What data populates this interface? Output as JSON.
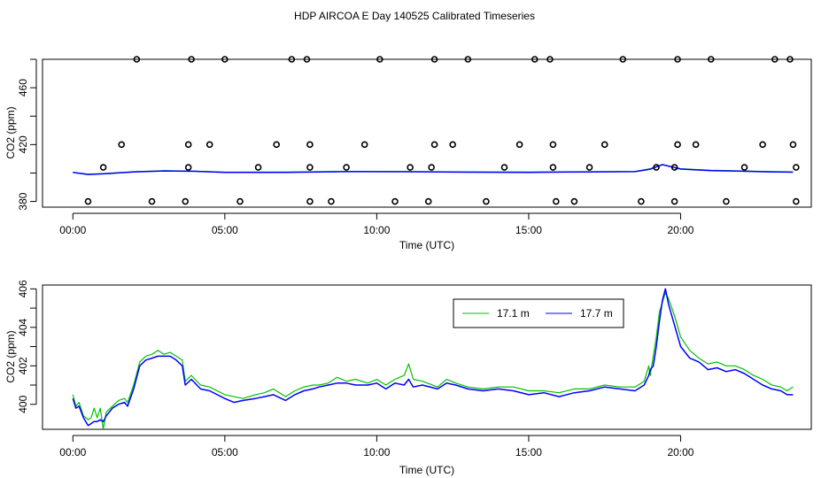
{
  "title": "HDP AIRCOA E  Day 140525  Calibrated Timeseries",
  "chart_data": [
    {
      "type": "scatter",
      "xlabel": "Time (UTC)",
      "ylabel": "CO2 (ppm)",
      "xlim": [
        -1.0,
        24.3
      ],
      "ylim": [
        376,
        480
      ],
      "xticks": [
        0,
        5,
        10,
        15,
        20
      ],
      "xtick_labels": [
        "00:00",
        "05:00",
        "10:00",
        "15:00",
        "20:00"
      ],
      "yticks": [
        380,
        400,
        420,
        440,
        460,
        480
      ],
      "ytick_labels": [
        "380",
        "",
        "420",
        "",
        "460",
        ""
      ],
      "points": {
        "x": [
          2.1,
          3.9,
          5.0,
          7.2,
          7.7,
          10.1,
          11.9,
          13.0,
          15.2,
          15.7,
          18.1,
          19.9,
          21.0,
          23.1,
          23.6,
          1.6,
          3.8,
          4.5,
          6.7,
          7.8,
          9.6,
          11.9,
          12.5,
          14.7,
          15.8,
          17.5,
          19.9,
          20.5,
          22.7,
          23.7,
          1.0,
          3.8,
          6.1,
          7.8,
          9.0,
          11.1,
          11.8,
          14.2,
          15.8,
          17.0,
          19.2,
          19.8,
          22.1,
          23.8,
          0.5,
          2.6,
          3.7,
          5.5,
          7.8,
          8.5,
          10.6,
          11.7,
          13.6,
          15.9,
          16.5,
          18.7,
          19.8,
          21.5,
          23.8
        ],
        "y": [
          480,
          480,
          480,
          480,
          480,
          480,
          480,
          480,
          480,
          480,
          480,
          480,
          480,
          480,
          480,
          420,
          420,
          420,
          420,
          420,
          420,
          420,
          420,
          420,
          420,
          420,
          420,
          420,
          420,
          420,
          404,
          404,
          404,
          404,
          404,
          404,
          404,
          404,
          404,
          404,
          404,
          404,
          404,
          404,
          380,
          380,
          380,
          380,
          380,
          380,
          380,
          380,
          380,
          380,
          380,
          380,
          380,
          380,
          380
        ]
      },
      "series": [
        {
          "color": "#00c000",
          "x": [
            0,
            0.5,
            1,
            2,
            3,
            4,
            5,
            7,
            9,
            11,
            13,
            15,
            17,
            18.5,
            19,
            19.4,
            20,
            21,
            22,
            23,
            23.7
          ],
          "y": [
            400.5,
            399.2,
            399.6,
            400.9,
            401.6,
            401.3,
            400.6,
            400.7,
            401.1,
            401.0,
            400.8,
            400.7,
            400.9,
            401.1,
            403.0,
            405.8,
            403.0,
            401.9,
            401.5,
            401.0,
            400.8
          ]
        },
        {
          "color": "#0000ff",
          "x": [
            0,
            0.5,
            1,
            2,
            3,
            4,
            5,
            7,
            9,
            11,
            13,
            15,
            17,
            18.5,
            19,
            19.4,
            20,
            21,
            22,
            23,
            23.7
          ],
          "y": [
            400.4,
            399.0,
            399.4,
            400.7,
            401.5,
            401.2,
            400.4,
            400.5,
            401.0,
            400.9,
            400.6,
            400.5,
            400.8,
            401.0,
            402.7,
            405.9,
            402.8,
            401.7,
            401.3,
            400.8,
            400.6
          ]
        }
      ]
    },
    {
      "type": "line",
      "xlabel": "Time (UTC)",
      "ylabel": "CO2 (ppm)",
      "xlim": [
        -1.0,
        24.3
      ],
      "ylim": [
        398.7,
        406.2
      ],
      "xticks": [
        0,
        5,
        10,
        15,
        20
      ],
      "xtick_labels": [
        "00:00",
        "05:00",
        "10:00",
        "15:00",
        "20:00"
      ],
      "yticks": [
        400,
        401,
        402,
        403,
        404,
        405,
        406
      ],
      "ytick_labels": [
        "400",
        "",
        "402",
        "",
        "404",
        "",
        "406"
      ],
      "legend": {
        "placement": "top-right"
      },
      "series": [
        {
          "name": "17.1 m",
          "color": "#00c000",
          "x": [
            0.0,
            0.1,
            0.2,
            0.35,
            0.5,
            0.6,
            0.7,
            0.8,
            0.9,
            1.0,
            1.1,
            1.3,
            1.5,
            1.7,
            1.8,
            2.0,
            2.2,
            2.4,
            2.6,
            2.8,
            3.0,
            3.2,
            3.4,
            3.6,
            3.7,
            3.9,
            4.2,
            4.5,
            5.0,
            5.3,
            5.6,
            6.0,
            6.3,
            6.6,
            7.0,
            7.3,
            7.6,
            7.9,
            8.1,
            8.4,
            8.7,
            9.0,
            9.3,
            9.7,
            10.0,
            10.3,
            10.6,
            10.9,
            11.05,
            11.2,
            11.5,
            12.0,
            12.3,
            12.6,
            13.0,
            13.5,
            14.0,
            14.5,
            15.0,
            15.5,
            16.0,
            16.5,
            17.0,
            17.5,
            18.0,
            18.5,
            18.8,
            18.95,
            19.0,
            19.1,
            19.2,
            19.3,
            19.4,
            19.5,
            19.6,
            19.8,
            20.0,
            20.3,
            20.6,
            20.9,
            21.2,
            21.5,
            21.8,
            22.1,
            22.4,
            22.7,
            23.0,
            23.3,
            23.5,
            23.7
          ],
          "y": [
            400.5,
            399.9,
            400.1,
            399.4,
            399.2,
            399.3,
            399.8,
            399.3,
            399.8,
            398.7,
            399.6,
            399.9,
            400.2,
            400.3,
            400.1,
            401.0,
            402.2,
            402.5,
            402.6,
            402.8,
            402.6,
            402.7,
            402.5,
            402.3,
            401.2,
            401.5,
            401.0,
            400.9,
            400.5,
            400.4,
            400.3,
            400.5,
            400.6,
            400.8,
            400.4,
            400.7,
            400.9,
            401.0,
            401.0,
            401.1,
            401.4,
            401.2,
            401.3,
            401.1,
            401.3,
            401.0,
            401.3,
            401.5,
            402.1,
            401.3,
            401.2,
            400.9,
            401.3,
            401.1,
            400.9,
            400.8,
            400.9,
            400.9,
            400.7,
            400.7,
            400.6,
            400.8,
            400.8,
            401.0,
            400.9,
            400.9,
            401.2,
            402.0,
            401.5,
            402.5,
            403.5,
            404.8,
            405.3,
            405.8,
            405.5,
            404.6,
            403.5,
            402.8,
            402.4,
            402.1,
            402.2,
            402.0,
            402.0,
            401.8,
            401.5,
            401.3,
            401.0,
            400.9,
            400.7,
            400.9
          ]
        },
        {
          "name": "17.7 m",
          "color": "#0000ff",
          "x": [
            0.0,
            0.1,
            0.2,
            0.35,
            0.5,
            0.6,
            0.7,
            0.8,
            0.9,
            1.0,
            1.1,
            1.3,
            1.5,
            1.7,
            1.8,
            2.0,
            2.2,
            2.4,
            2.6,
            2.8,
            3.0,
            3.2,
            3.4,
            3.6,
            3.7,
            3.9,
            4.2,
            4.5,
            5.0,
            5.3,
            5.6,
            6.0,
            6.3,
            6.6,
            7.0,
            7.3,
            7.6,
            7.9,
            8.1,
            8.4,
            8.7,
            9.0,
            9.3,
            9.7,
            10.0,
            10.3,
            10.6,
            10.9,
            11.05,
            11.2,
            11.5,
            12.0,
            12.3,
            12.6,
            13.0,
            13.5,
            14.0,
            14.5,
            15.0,
            15.5,
            16.0,
            16.5,
            17.0,
            17.5,
            18.0,
            18.5,
            18.8,
            18.95,
            19.0,
            19.1,
            19.2,
            19.3,
            19.4,
            19.5,
            19.6,
            19.8,
            20.0,
            20.3,
            20.6,
            20.9,
            21.2,
            21.5,
            21.8,
            22.1,
            22.4,
            22.7,
            23.0,
            23.3,
            23.5,
            23.7
          ],
          "y": [
            400.3,
            399.8,
            399.9,
            399.3,
            398.9,
            399.0,
            399.1,
            399.1,
            399.2,
            399.1,
            399.4,
            399.8,
            400.0,
            400.1,
            399.9,
            400.8,
            402.0,
            402.3,
            402.4,
            402.5,
            402.5,
            402.5,
            402.3,
            402.0,
            401.0,
            401.3,
            400.8,
            400.7,
            400.3,
            400.1,
            400.2,
            400.3,
            400.4,
            400.5,
            400.2,
            400.5,
            400.7,
            400.8,
            400.9,
            401.0,
            401.1,
            401.1,
            401.0,
            401.0,
            401.1,
            400.8,
            401.1,
            401.0,
            401.3,
            400.9,
            401.0,
            400.8,
            401.1,
            401.0,
            400.8,
            400.7,
            400.8,
            400.7,
            400.5,
            400.6,
            400.4,
            400.6,
            400.7,
            400.9,
            400.8,
            400.7,
            401.0,
            401.5,
            401.8,
            402.0,
            403.0,
            404.3,
            405.4,
            406.0,
            405.2,
            404.1,
            403.0,
            402.4,
            402.2,
            401.8,
            401.9,
            401.7,
            401.8,
            401.6,
            401.3,
            401.0,
            400.8,
            400.7,
            400.5,
            400.5
          ]
        }
      ]
    }
  ]
}
